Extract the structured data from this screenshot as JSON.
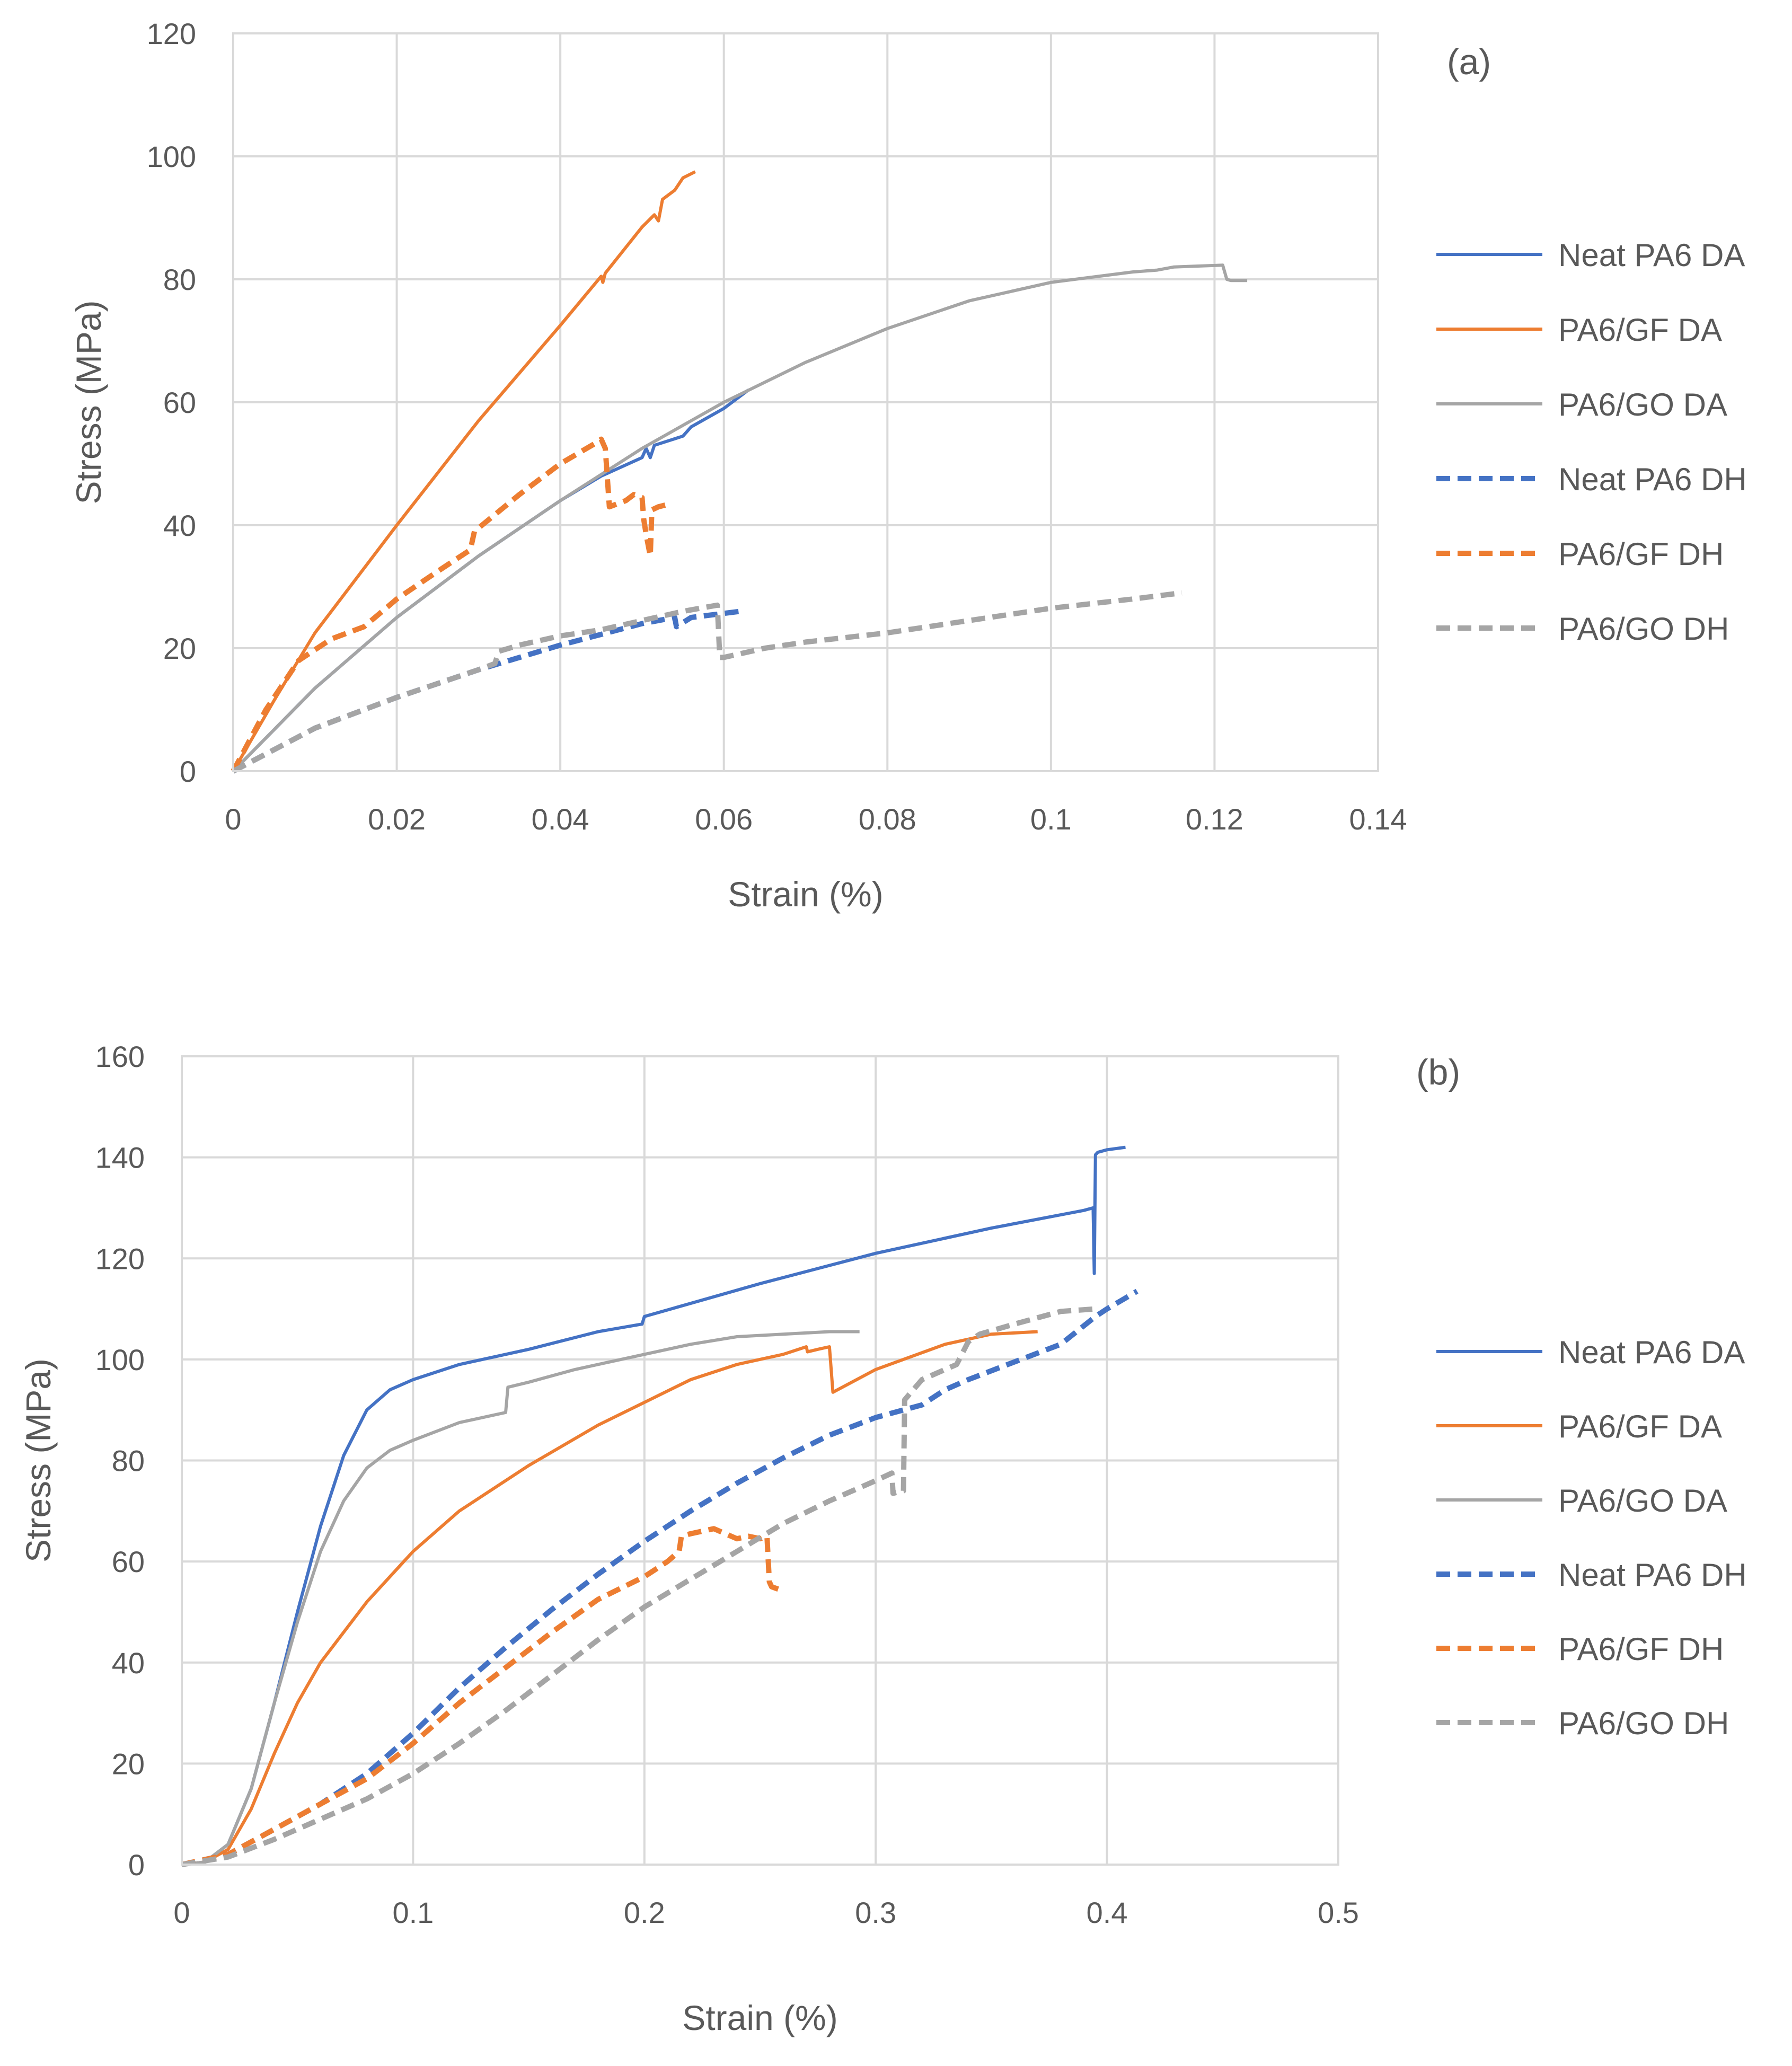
{
  "chart_data": [
    {
      "type": "line",
      "panel_label": "(a)",
      "xlabel": "Strain (%)",
      "ylabel": "Stress (MPa)",
      "xlim": [
        0,
        0.14
      ],
      "ylim": [
        0,
        120
      ],
      "xticks": [
        0,
        0.02,
        0.04,
        0.06,
        0.08,
        0.1,
        0.12,
        0.14
      ],
      "yticks": [
        0,
        20,
        40,
        60,
        80,
        100,
        120
      ],
      "xtick_labels": [
        "0",
        "0.02",
        "0.04",
        "0.06",
        "0.08",
        "0.1",
        "0.12",
        "0.14"
      ],
      "ytick_labels": [
        "0",
        "20",
        "40",
        "60",
        "80",
        "100",
        "120"
      ],
      "grid": true,
      "legend_position": "right",
      "series": [
        {
          "name": "Neat PA6 DA",
          "color": "#4472C4",
          "dashed": false,
          "x": [
            0,
            0.01,
            0.02,
            0.03,
            0.04,
            0.045,
            0.05,
            0.0505,
            0.051,
            0.0515,
            0.055,
            0.056,
            0.06,
            0.063
          ],
          "y": [
            0,
            13.5,
            25,
            35,
            44,
            48,
            51,
            52.5,
            51,
            53,
            54.5,
            56,
            59,
            62
          ]
        },
        {
          "name": "PA6/GF DA",
          "color": "#ED7D31",
          "dashed": false,
          "x": [
            0,
            0.005,
            0.01,
            0.02,
            0.03,
            0.04,
            0.045,
            0.0452,
            0.0455,
            0.05,
            0.0515,
            0.052,
            0.0525,
            0.054,
            0.055,
            0.0565
          ],
          "y": [
            0,
            11.5,
            22.5,
            40,
            57,
            72.5,
            80.5,
            79.5,
            81,
            88.5,
            90.5,
            89.5,
            93,
            94.5,
            96.5,
            97.5
          ]
        },
        {
          "name": "PA6/GO DA",
          "color": "#A5A5A5",
          "dashed": false,
          "x": [
            0,
            0.01,
            0.02,
            0.03,
            0.04,
            0.05,
            0.06,
            0.07,
            0.08,
            0.09,
            0.1,
            0.11,
            0.113,
            0.115,
            0.121,
            0.1215,
            0.122,
            0.124
          ],
          "y": [
            0,
            13.5,
            25,
            35,
            44,
            52.5,
            60,
            66.5,
            72,
            76.5,
            79.5,
            81.2,
            81.5,
            82,
            82.3,
            80,
            79.8,
            79.8
          ]
        },
        {
          "name": "Neat PA6 DH",
          "color": "#4472C4",
          "dashed": true,
          "x": [
            0,
            0.01,
            0.02,
            0.03,
            0.04,
            0.05,
            0.054,
            0.0542,
            0.056,
            0.062
          ],
          "y": [
            0,
            7,
            12,
            16.5,
            20.5,
            24,
            25,
            23.5,
            25,
            26
          ]
        },
        {
          "name": "PA6/GF DH",
          "color": "#ED7D31",
          "dashed": true,
          "x": [
            0,
            0.004,
            0.008,
            0.012,
            0.016,
            0.02,
            0.025,
            0.029,
            0.0295,
            0.035,
            0.04,
            0.0445,
            0.045,
            0.0455,
            0.046,
            0.048,
            0.049,
            0.05,
            0.0502,
            0.0505,
            0.051,
            0.0512,
            0.052,
            0.0535
          ],
          "y": [
            0,
            10,
            18,
            21.5,
            23.5,
            28,
            32.5,
            36,
            39,
            45,
            50,
            53.5,
            54,
            52.5,
            43,
            44,
            45,
            44.5,
            41,
            38.5,
            35,
            42.5,
            43,
            43.5
          ]
        },
        {
          "name": "PA6/GO DH",
          "color": "#A5A5A5",
          "dashed": true,
          "x": [
            0,
            0.01,
            0.02,
            0.03,
            0.032,
            0.0325,
            0.035,
            0.04,
            0.045,
            0.05,
            0.055,
            0.0592,
            0.0595,
            0.06,
            0.065,
            0.07,
            0.08,
            0.09,
            0.1,
            0.11,
            0.116
          ],
          "y": [
            0,
            7,
            12,
            16.5,
            17.5,
            19.5,
            20.5,
            22,
            23,
            24.5,
            26,
            27,
            18.5,
            18.5,
            20,
            21,
            22.5,
            24.5,
            26.5,
            28,
            29
          ]
        }
      ]
    },
    {
      "type": "line",
      "panel_label": "(b)",
      "xlabel": "Strain (%)",
      "ylabel": "Stress (MPa)",
      "xlim": [
        0,
        0.5
      ],
      "ylim": [
        0,
        160
      ],
      "xticks": [
        0,
        0.1,
        0.2,
        0.3,
        0.4,
        0.5
      ],
      "yticks": [
        0,
        20,
        40,
        60,
        80,
        100,
        120,
        140,
        160
      ],
      "xtick_labels": [
        "0",
        "0.1",
        "0.2",
        "0.3",
        "0.4",
        "0.5"
      ],
      "ytick_labels": [
        "0",
        "20",
        "40",
        "60",
        "80",
        "100",
        "120",
        "140",
        "160"
      ],
      "grid": true,
      "legend_position": "right",
      "series": [
        {
          "name": "Neat PA6 DA",
          "color": "#4472C4",
          "dashed": false,
          "x": [
            0,
            0.01,
            0.02,
            0.03,
            0.04,
            0.05,
            0.06,
            0.07,
            0.08,
            0.09,
            0.1,
            0.12,
            0.15,
            0.18,
            0.199,
            0.2,
            0.25,
            0.3,
            0.35,
            0.39,
            0.394,
            0.3945,
            0.395,
            0.396,
            0.4,
            0.408
          ],
          "y": [
            0,
            0.5,
            4,
            15,
            32,
            50,
            67,
            81,
            90,
            94,
            96,
            99,
            102,
            105.5,
            107,
            108.5,
            115,
            121,
            126,
            129.5,
            130,
            117,
            140.5,
            141,
            141.5,
            142
          ]
        },
        {
          "name": "PA6/GF DA",
          "color": "#ED7D31",
          "dashed": false,
          "x": [
            0,
            0.01,
            0.02,
            0.03,
            0.04,
            0.05,
            0.06,
            0.08,
            0.1,
            0.12,
            0.15,
            0.18,
            0.2,
            0.22,
            0.24,
            0.26,
            0.27,
            0.2705,
            0.275,
            0.28,
            0.2815,
            0.3,
            0.33,
            0.35,
            0.37
          ],
          "y": [
            0,
            0.5,
            3,
            11,
            22,
            32,
            40,
            52,
            62,
            70,
            79,
            87,
            91.5,
            96,
            99,
            101,
            102.5,
            101.5,
            102,
            102.5,
            93.5,
            98,
            103,
            105,
            105.5
          ]
        },
        {
          "name": "PA6/GO DA",
          "color": "#A5A5A5",
          "dashed": false,
          "x": [
            0,
            0.01,
            0.02,
            0.03,
            0.04,
            0.05,
            0.06,
            0.07,
            0.08,
            0.09,
            0.1,
            0.12,
            0.14,
            0.141,
            0.15,
            0.17,
            0.2,
            0.22,
            0.24,
            0.26,
            0.28,
            0.293
          ],
          "y": [
            0,
            0.5,
            4,
            15,
            32,
            48,
            62,
            72,
            78.5,
            82,
            84,
            87.5,
            89.5,
            94.5,
            95.5,
            98,
            101,
            103,
            104.5,
            105,
            105.5,
            105.5
          ]
        },
        {
          "name": "Neat PA6 DH",
          "color": "#4472C4",
          "dashed": true,
          "x": [
            0,
            0.02,
            0.04,
            0.06,
            0.08,
            0.1,
            0.12,
            0.14,
            0.16,
            0.18,
            0.2,
            0.22,
            0.24,
            0.26,
            0.28,
            0.3,
            0.32,
            0.33,
            0.34,
            0.36,
            0.38,
            0.395,
            0.4,
            0.413
          ],
          "y": [
            0,
            2,
            7,
            12,
            18,
            26,
            35,
            43,
            50.5,
            57.5,
            64,
            70,
            75.5,
            80.5,
            85,
            88.5,
            91,
            94,
            96,
            99.5,
            103,
            108.5,
            110,
            113.5
          ]
        },
        {
          "name": "PA6/GF DH",
          "color": "#ED7D31",
          "dashed": true,
          "x": [
            0,
            0.02,
            0.04,
            0.06,
            0.08,
            0.1,
            0.12,
            0.14,
            0.16,
            0.18,
            0.2,
            0.21,
            0.215,
            0.216,
            0.22,
            0.23,
            0.24,
            0.245,
            0.25,
            0.253,
            0.254,
            0.255,
            0.258
          ],
          "y": [
            0,
            2,
            7,
            12,
            17,
            24,
            32,
            39,
            46,
            52.5,
            57,
            60,
            62,
            65,
            65.5,
            66.5,
            64.5,
            65,
            64.5,
            65,
            56,
            55,
            54.5
          ]
        },
        {
          "name": "PA6/GO DH",
          "color": "#A5A5A5",
          "dashed": true,
          "x": [
            0,
            0.02,
            0.04,
            0.06,
            0.08,
            0.1,
            0.12,
            0.14,
            0.16,
            0.18,
            0.2,
            0.22,
            0.24,
            0.26,
            0.28,
            0.3,
            0.307,
            0.3075,
            0.312,
            0.3125,
            0.32,
            0.335,
            0.34,
            0.345,
            0.36,
            0.38,
            0.395
          ],
          "y": [
            0,
            1.5,
            5,
            9,
            13,
            18,
            24,
            30.5,
            37.5,
            44.5,
            51,
            56.5,
            62,
            67.5,
            72,
            76,
            77.5,
            73.5,
            74,
            92,
            96,
            99,
            103.5,
            105,
            107,
            109.5,
            110
          ]
        }
      ]
    }
  ]
}
